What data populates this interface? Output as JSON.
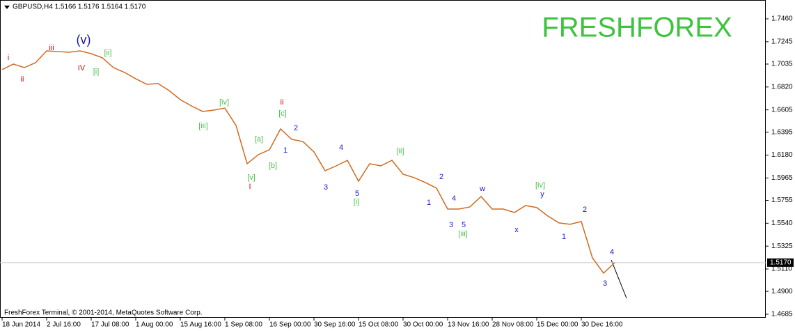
{
  "chart_data": {
    "type": "line",
    "title": "GBPUSD,H4  1.5166 1.5176 1.5164 1.5170",
    "watermark": "FRESHFOREX",
    "footer": "FreshForex Terminal, © 2001-2014, MetaQuotes Software Corp.",
    "color": "#d2691e",
    "categories": [
      "18 Jun 2014",
      null,
      null,
      null,
      "2 Jul 16:00",
      null,
      null,
      null,
      "17 Jul 08:00",
      null,
      null,
      null,
      "1 Aug 00:00",
      null,
      null,
      null,
      "15 Aug 16:00",
      null,
      null,
      null,
      "1 Sep 08:00",
      null,
      null,
      null,
      "16 Sep 00:00",
      null,
      null,
      null,
      "30 Sep 16:00",
      null,
      null,
      null,
      "15 Oct 08:00",
      null,
      null,
      null,
      "30 Oct 00:00",
      null,
      null,
      null,
      "13 Nov 16:00",
      null,
      null,
      null,
      "28 Nov 08:00",
      null,
      null,
      null,
      "15 Dec 00:00",
      null,
      null,
      null,
      "30 Dec 16:00",
      null,
      null,
      null
    ],
    "values": [
      1.6983,
      1.7035,
      1.7002,
      1.7048,
      1.7159,
      1.7153,
      1.7146,
      1.7159,
      1.7133,
      1.7094,
      1.7002,
      1.6956,
      1.6897,
      1.6845,
      1.6852,
      1.6786,
      1.6701,
      1.6642,
      1.659,
      1.6603,
      1.6622,
      1.6459,
      1.6099,
      1.6184,
      1.623,
      1.6426,
      1.6328,
      1.6308,
      1.621,
      1.6033,
      1.6079,
      1.6131,
      1.5935,
      1.6099,
      1.6079,
      1.6131,
      1.6001,
      1.5968,
      1.5922,
      1.587,
      1.5673,
      1.5673,
      1.5693,
      1.5791,
      1.5673,
      1.5673,
      1.5641,
      1.5706,
      1.5687,
      1.5608,
      1.5543,
      1.553,
      1.5556,
      1.5215,
      1.5071,
      1.517
    ],
    "ylim": [
      1.4652,
      1.7637
    ],
    "yticks": [
      {
        "value": 1.746,
        "label": "1.7460"
      },
      {
        "value": 1.7245,
        "label": "1.7245"
      },
      {
        "value": 1.7035,
        "label": "1.7035"
      },
      {
        "value": 1.682,
        "label": "1.6820"
      },
      {
        "value": 1.6605,
        "label": "1.6605"
      },
      {
        "value": 1.6395,
        "label": "1.6395"
      },
      {
        "value": 1.618,
        "label": "1.6180"
      },
      {
        "value": 1.5965,
        "label": "1.5965"
      },
      {
        "value": 1.5755,
        "label": "1.5755"
      },
      {
        "value": 1.554,
        "label": "1.5540"
      },
      {
        "value": 1.5325,
        "label": "1.5325"
      },
      {
        "value": 1.511,
        "label": "1.5110"
      },
      {
        "value": 1.49,
        "label": "1.4900"
      },
      {
        "value": 1.4685,
        "label": "1.4685"
      }
    ],
    "last_price": {
      "value": 1.517,
      "label": "1.5170"
    },
    "annotations": [
      {
        "text": "i",
        "color": "#e00000"
      },
      {
        "text": "ii",
        "color": "#e00000"
      },
      {
        "text": "iii",
        "color": "#e00000"
      },
      {
        "text": "IV",
        "color": "#e00000"
      },
      {
        "text": "(v)",
        "color": "#1a1a99"
      },
      {
        "text": "[i]",
        "color": "#4cc24c"
      },
      {
        "text": "[ii]",
        "color": "#4cc24c"
      },
      {
        "text": "[iii]",
        "color": "#4cc24c"
      },
      {
        "text": "[iv]",
        "color": "#4cc24c"
      },
      {
        "text": "[v]",
        "color": "#4cc24c"
      },
      {
        "text": "I",
        "color": "#e00000"
      },
      {
        "text": "[a]",
        "color": "#4cc24c"
      },
      {
        "text": "[b]",
        "color": "#4cc24c"
      },
      {
        "text": "[c]",
        "color": "#4cc24c"
      },
      {
        "text": "ii",
        "color": "#e00000"
      },
      {
        "text": "1",
        "color": "#1a1acc"
      },
      {
        "text": "2",
        "color": "#1a1acc"
      },
      {
        "text": "4",
        "color": "#1a1acc"
      },
      {
        "text": "3",
        "color": "#1a1acc"
      },
      {
        "text": "5",
        "color": "#1a1acc"
      },
      {
        "text": "[i]",
        "color": "#4cc24c"
      },
      {
        "text": "[ii]",
        "color": "#4cc24c"
      },
      {
        "text": "2",
        "color": "#1a1acc"
      },
      {
        "text": "1",
        "color": "#1a1acc"
      },
      {
        "text": "4",
        "color": "#1a1acc"
      },
      {
        "text": "3",
        "color": "#1a1acc"
      },
      {
        "text": "5",
        "color": "#1a1acc"
      },
      {
        "text": "[iii]",
        "color": "#4cc24c"
      },
      {
        "text": "w",
        "color": "#1a1acc"
      },
      {
        "text": "x",
        "color": "#1a1acc"
      },
      {
        "text": "[iv]",
        "color": "#4cc24c"
      },
      {
        "text": "y",
        "color": "#1a1acc"
      },
      {
        "text": "2",
        "color": "#1a1acc"
      },
      {
        "text": "1",
        "color": "#1a1acc"
      },
      {
        "text": "4",
        "color": "#1a1acc"
      },
      {
        "text": "3",
        "color": "#1a1acc"
      }
    ]
  }
}
